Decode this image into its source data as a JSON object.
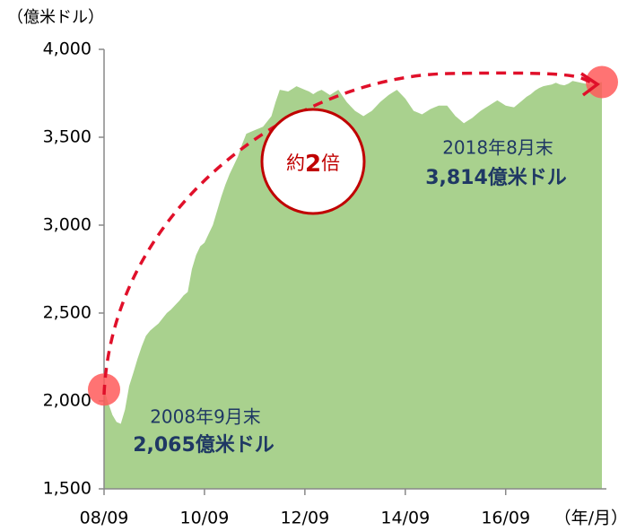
{
  "chart_data": {
    "type": "area",
    "y_unit": "（億米ドル）",
    "x_unit": "（年/月）",
    "color": "#a9d18e",
    "categories": [
      "08/09",
      null,
      null,
      null,
      null,
      null,
      null,
      null,
      null,
      null,
      null,
      null,
      null,
      null,
      null,
      null,
      null,
      null,
      null,
      null,
      null,
      null,
      null,
      null,
      "10/09",
      null,
      null,
      null,
      null,
      null,
      null,
      null,
      null,
      null,
      null,
      null,
      null,
      null,
      null,
      null,
      null,
      null,
      null,
      null,
      null,
      null,
      null,
      null,
      "12/09",
      null,
      null,
      null,
      null,
      null,
      null,
      null,
      null,
      null,
      null,
      null,
      null,
      null,
      null,
      null,
      null,
      null,
      null,
      null,
      null,
      null,
      null,
      null,
      "14/09",
      null,
      null,
      null,
      null,
      null,
      null,
      null,
      null,
      null,
      null,
      null,
      null,
      null,
      null,
      null,
      null,
      null,
      null,
      null,
      null,
      null,
      null,
      null,
      "16/09",
      null,
      null,
      null,
      null,
      null,
      null,
      null,
      null,
      null,
      null,
      null,
      null,
      null,
      null,
      null,
      null,
      null,
      null,
      null,
      null,
      null,
      null,
      null
    ],
    "values": [
      2065,
      1990,
      1920,
      1880,
      1870,
      1950,
      2085,
      2160,
      2240,
      2310,
      2370,
      2400,
      2420,
      2440,
      2470,
      2500,
      2520,
      2545,
      2570,
      2600,
      2620,
      2750,
      2830,
      2880,
      2900,
      2950,
      3000,
      3080,
      3160,
      3230,
      3290,
      3340,
      3390,
      3460,
      3520,
      3530,
      3540,
      3550,
      3560,
      3590,
      3620,
      3700,
      3770,
      3765,
      3760,
      3775,
      3790,
      3780,
      3770,
      3760,
      3745,
      3760,
      3770,
      3755,
      3740,
      3755,
      3770,
      3735,
      3700,
      3675,
      3650,
      3635,
      3620,
      3635,
      3650,
      3675,
      3700,
      3720,
      3740,
      3755,
      3770,
      3745,
      3720,
      3685,
      3650,
      3640,
      3630,
      3645,
      3660,
      3670,
      3680,
      3680,
      3680,
      3650,
      3620,
      3600,
      3580,
      3595,
      3610,
      3630,
      3650,
      3665,
      3680,
      3695,
      3710,
      3695,
      3680,
      3675,
      3670,
      3690,
      3710,
      3730,
      3745,
      3765,
      3780,
      3790,
      3795,
      3800,
      3810,
      3800,
      3795,
      3805,
      3820,
      3815,
      3810,
      3805,
      3800,
      3805,
      3810,
      3814
    ],
    "ylim": [
      1500,
      4000
    ],
    "yticks": [
      {
        "value": 1500,
        "label": "1,500"
      },
      {
        "value": 2000,
        "label": "2,000"
      },
      {
        "value": 2500,
        "label": "2,500"
      },
      {
        "value": 3000,
        "label": "3,000"
      },
      {
        "value": 3500,
        "label": "3,500"
      },
      {
        "value": 4000,
        "label": "4,000"
      }
    ],
    "annotations": {
      "ratio": [
        "約",
        "2",
        "倍"
      ],
      "end_date": "2018年8月末",
      "end_value": "3,814億米ドル",
      "start_date": "2008年9月末",
      "start_value": "2,065億米ドル"
    }
  }
}
